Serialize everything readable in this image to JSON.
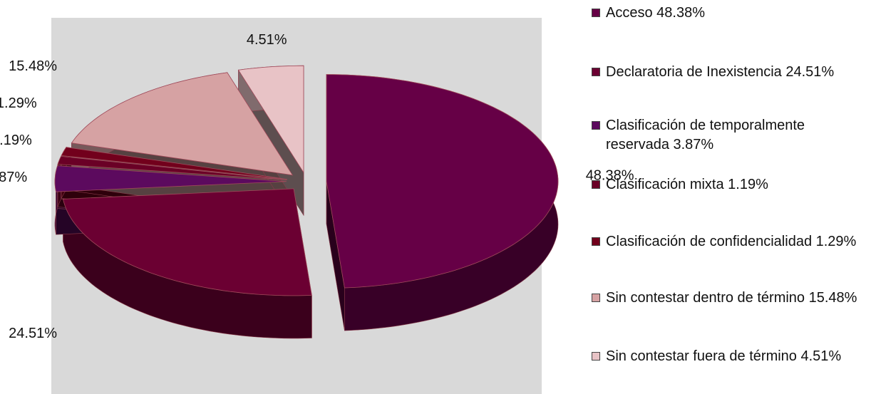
{
  "chart_data": {
    "type": "pie",
    "categories": [
      "Acceso",
      "Declaratoria de Inexistencia",
      "Clasificación de temporalmente reservada",
      "Clasificación mixta",
      "Clasificación de confidencialidad",
      "Sin contestar dentro de término",
      "Sin contestar fuera de término"
    ],
    "values": [
      48.38,
      24.51,
      3.87,
      1.19,
      1.29,
      15.48,
      4.51
    ],
    "value_labels": [
      "48.38%",
      "24.51%",
      "3.87%",
      "1.19%",
      "1.29%",
      "15.48%",
      "4.51%"
    ],
    "colors": [
      "#660046",
      "#6b0032",
      "#5c0a5e",
      "#6a0026",
      "#72001c",
      "#d6a2a3",
      "#e8c3c6"
    ],
    "legend": "right"
  }
}
